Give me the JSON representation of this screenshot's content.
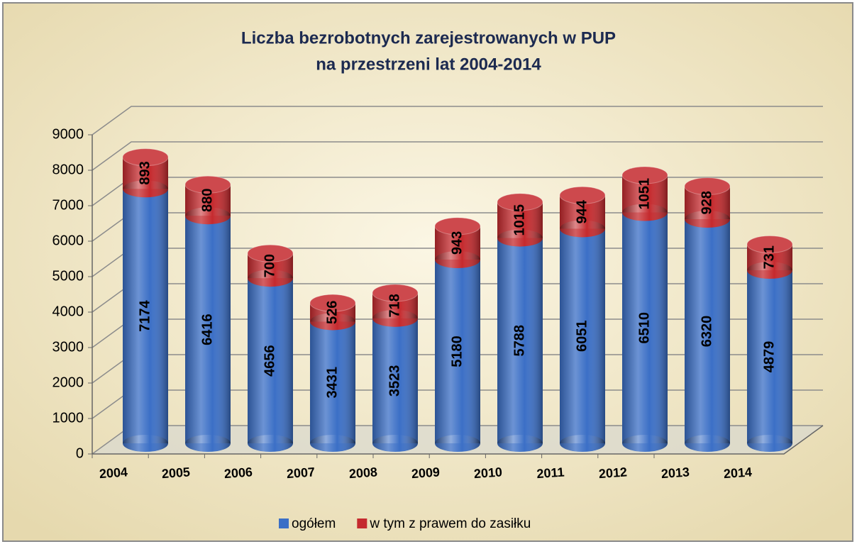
{
  "chart_data": {
    "type": "bar",
    "stacked": true,
    "title": [
      "Liczba bezrobotnych zarejestrowanych w PUP",
      "na przestrzeni lat 2004-2014"
    ],
    "categories": [
      "2004",
      "2005",
      "2006",
      "2007",
      "2008",
      "2009",
      "2010",
      "2011",
      "2012",
      "2013",
      "2014"
    ],
    "series": [
      {
        "name": "ogółem",
        "color": "#3b6fc6",
        "values": [
          7174,
          6416,
          4656,
          3431,
          3523,
          5180,
          5788,
          6051,
          6510,
          6320,
          4879
        ]
      },
      {
        "name": "w tym z prawem do zasiłku",
        "color": "#c52a2e",
        "values": [
          893,
          880,
          700,
          526,
          718,
          943,
          1015,
          944,
          1051,
          928,
          731
        ]
      }
    ],
    "ylim": [
      0,
      9000
    ],
    "yticks": [
      0,
      1000,
      2000,
      3000,
      4000,
      5000,
      6000,
      7000,
      8000,
      9000
    ],
    "grid": true,
    "legend": "bottom"
  }
}
